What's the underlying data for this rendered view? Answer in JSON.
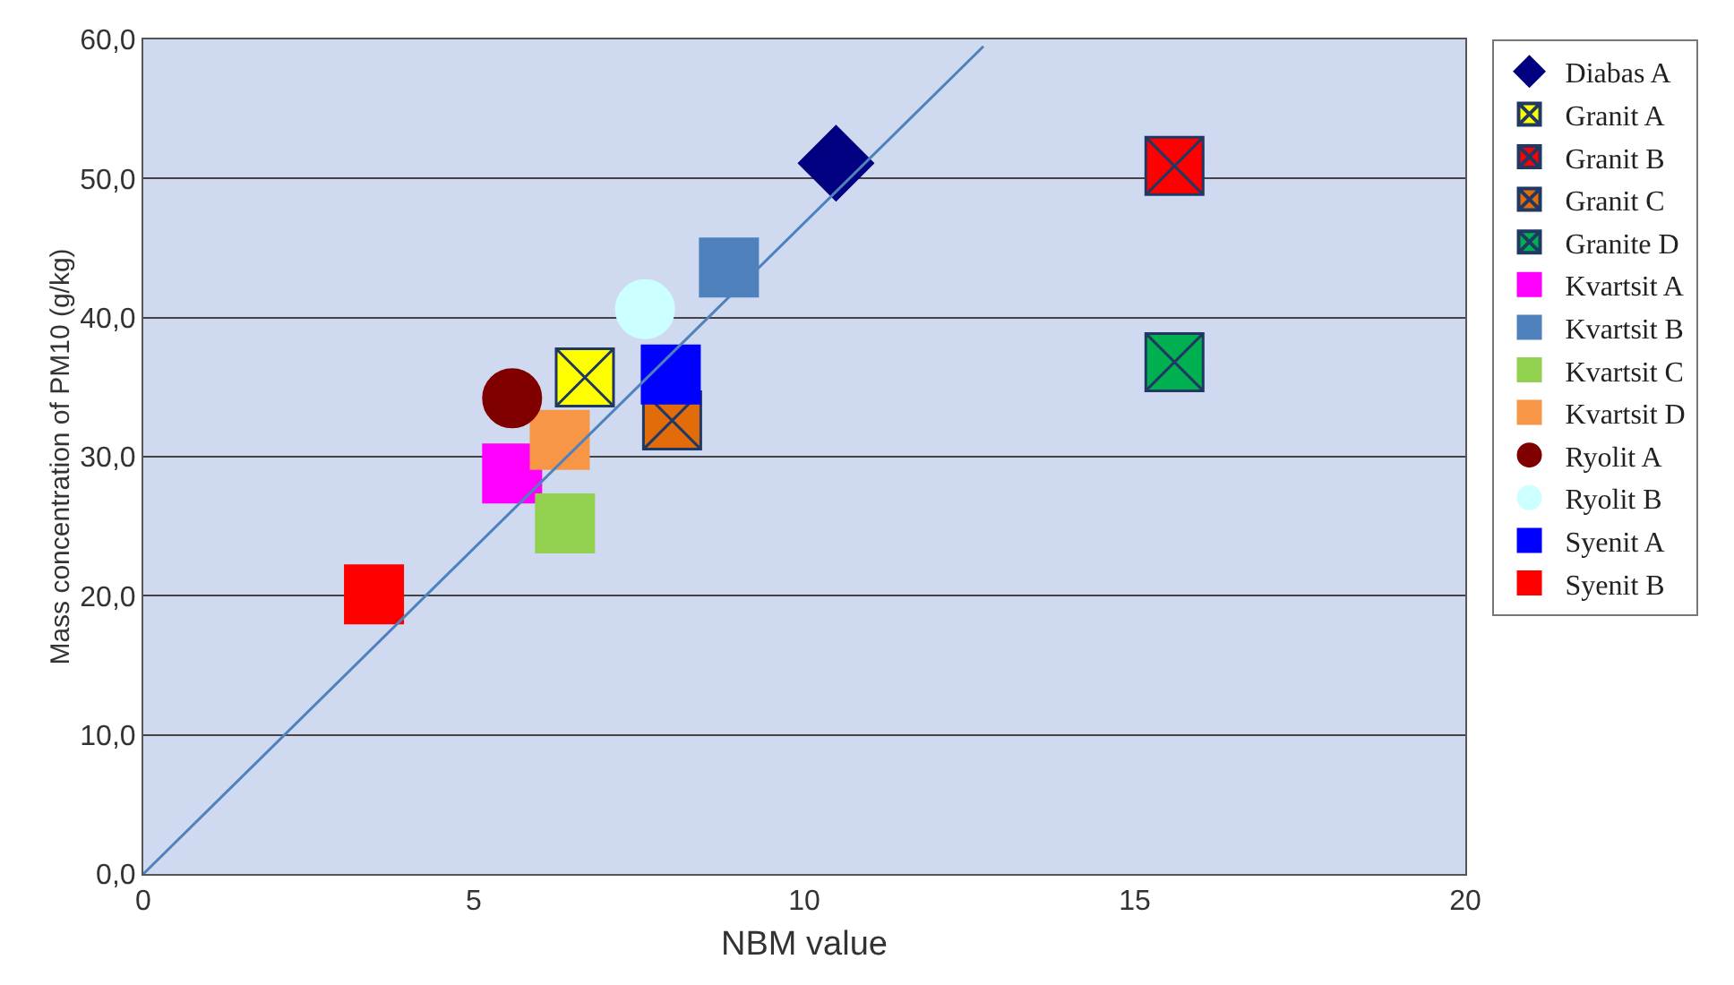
{
  "chart_data": {
    "type": "scatter",
    "xlabel": "NBM value",
    "ylabel": "Mass concentration of PM10 (g/kg)",
    "xlim": [
      0,
      20
    ],
    "xticks": [
      0,
      5,
      10,
      15,
      20
    ],
    "ylim": [
      0,
      60
    ],
    "yticks": [
      {
        "value": 0,
        "label": "0,0"
      },
      {
        "value": 10,
        "label": "10,0"
      },
      {
        "value": 20,
        "label": "20,0"
      },
      {
        "value": 30,
        "label": "30,0"
      },
      {
        "value": 40,
        "label": "40,0"
      },
      {
        "value": 50,
        "label": "50,0"
      },
      {
        "value": 60,
        "label": "60,0"
      }
    ],
    "grid": "y",
    "legend": "right",
    "series": [
      {
        "name": "Diabas A",
        "color": "#000080",
        "marker": "diamond",
        "x": [
          10.48
        ],
        "values": [
          51.1
        ]
      },
      {
        "name": "Granit A",
        "color": "#ffff00",
        "marker": "cross",
        "x": [
          6.68
        ],
        "values": [
          35.7
        ]
      },
      {
        "name": "Granit B",
        "color": "#ff0000",
        "marker": "cross",
        "x": [
          15.6
        ],
        "values": [
          50.9
        ]
      },
      {
        "name": "Granit C",
        "color": "#e36c0a",
        "marker": "cross",
        "x": [
          8.0
        ],
        "values": [
          32.6
        ]
      },
      {
        "name": "Granite D",
        "color": "#00b050",
        "marker": "cross",
        "x": [
          15.6
        ],
        "values": [
          36.8
        ]
      },
      {
        "name": "Kvartsit A",
        "color": "#ff00ff",
        "marker": "square",
        "x": [
          5.58
        ],
        "values": [
          28.8
        ]
      },
      {
        "name": "Kvartsit B",
        "color": "#4f81bd",
        "marker": "square",
        "x": [
          8.86
        ],
        "values": [
          43.6
        ]
      },
      {
        "name": "Kvartsit C",
        "color": "#92d050",
        "marker": "square",
        "x": [
          6.38
        ],
        "values": [
          25.2
        ]
      },
      {
        "name": "Kvartsit D",
        "color": "#f79646",
        "marker": "square",
        "x": [
          6.3
        ],
        "values": [
          31.2
        ]
      },
      {
        "name": "Ryolit A",
        "color": "#800000",
        "marker": "circle",
        "x": [
          5.58
        ],
        "values": [
          34.2
        ]
      },
      {
        "name": "Ryolit B",
        "color": "#ccffff",
        "marker": "circle",
        "x": [
          7.59
        ],
        "values": [
          40.6
        ]
      },
      {
        "name": "Syenit A",
        "color": "#0000ff",
        "marker": "square",
        "x": [
          7.98
        ],
        "values": [
          35.9
        ]
      },
      {
        "name": "Syenit B",
        "color": "#ff0000",
        "marker": "square",
        "x": [
          3.49
        ],
        "values": [
          20.1
        ]
      },
      {
        "type": "line",
        "color": "#4f81bd",
        "x": [
          0,
          12.71
        ],
        "values": [
          0,
          59.5
        ]
      }
    ]
  }
}
